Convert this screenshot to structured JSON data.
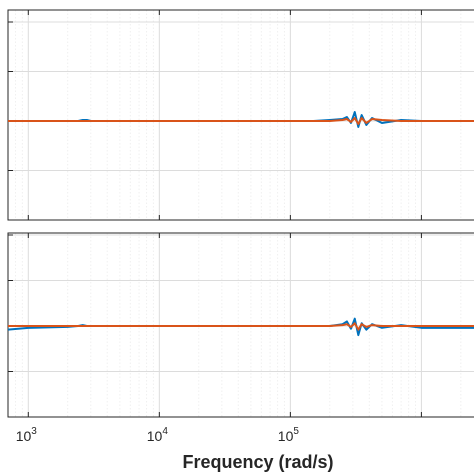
{
  "chart_data": [
    {
      "type": "line",
      "panel": "top",
      "x_scale": "log",
      "xlim": [
        700,
        2800000
      ],
      "ylim": [
        -1,
        1
      ],
      "grid": true,
      "series": [
        {
          "color": "#0072BD",
          "x": [
            700,
            1000,
            2000,
            2400,
            2600,
            2800,
            3000,
            10000,
            50000,
            100000,
            150000,
            200000,
            250000,
            270000,
            290000,
            310000,
            330000,
            350000,
            380000,
            420000,
            500000,
            700000,
            1000000,
            2800000
          ],
          "y": [
            0,
            0,
            0,
            0,
            0.01,
            0.01,
            0,
            0,
            0,
            0,
            0,
            0.01,
            0.02,
            0.04,
            -0.02,
            0.09,
            -0.06,
            0.06,
            -0.04,
            0.03,
            -0.02,
            0.01,
            0,
            0
          ]
        },
        {
          "color": "#D95319",
          "x": [
            700,
            1000,
            2000,
            2400,
            2600,
            2800,
            3000,
            10000,
            50000,
            100000,
            150000,
            200000,
            250000,
            270000,
            290000,
            310000,
            330000,
            350000,
            380000,
            420000,
            500000,
            700000,
            1000000,
            2800000
          ],
          "y": [
            0,
            0,
            0,
            0,
            0,
            0,
            0,
            0,
            0,
            0,
            0,
            0,
            0.01,
            0.02,
            -0.01,
            0.03,
            -0.03,
            0.03,
            -0.02,
            0.02,
            0.01,
            0,
            0,
            0
          ]
        }
      ]
    },
    {
      "type": "line",
      "panel": "bottom",
      "x_scale": "log",
      "xlim": [
        700,
        2800000
      ],
      "ylim": [
        -1,
        1
      ],
      "grid": true,
      "xlabel": "Frequency  (rad/s)",
      "xticks": [
        1000,
        10000,
        100000
      ],
      "xtick_labels": [
        {
          "base": "10",
          "exp": "3"
        },
        {
          "base": "10",
          "exp": "4"
        },
        {
          "base": "10",
          "exp": "5"
        }
      ],
      "series": [
        {
          "color": "#0072BD",
          "x": [
            700,
            1000,
            2000,
            2400,
            2600,
            2800,
            3000,
            10000,
            50000,
            100000,
            150000,
            200000,
            250000,
            270000,
            290000,
            310000,
            330000,
            350000,
            380000,
            420000,
            500000,
            700000,
            1000000,
            2800000
          ],
          "y": [
            -0.04,
            -0.02,
            -0.01,
            0,
            0.01,
            0,
            0,
            0,
            0,
            0,
            0,
            0,
            0.02,
            0.05,
            -0.03,
            0.08,
            -0.1,
            0.03,
            -0.04,
            0.02,
            -0.02,
            0.01,
            -0.02,
            -0.02
          ]
        },
        {
          "color": "#D95319",
          "x": [
            700,
            1000,
            2000,
            2400,
            2600,
            2800,
            3000,
            10000,
            50000,
            100000,
            150000,
            200000,
            250000,
            270000,
            290000,
            310000,
            330000,
            350000,
            380000,
            420000,
            500000,
            700000,
            1000000,
            2800000
          ],
          "y": [
            0,
            0,
            0,
            0,
            0,
            0,
            0,
            0,
            0,
            0,
            0,
            0,
            0.01,
            0.02,
            -0.01,
            0.03,
            -0.04,
            0.02,
            -0.01,
            0.01,
            0,
            0,
            0,
            0
          ]
        }
      ]
    }
  ]
}
